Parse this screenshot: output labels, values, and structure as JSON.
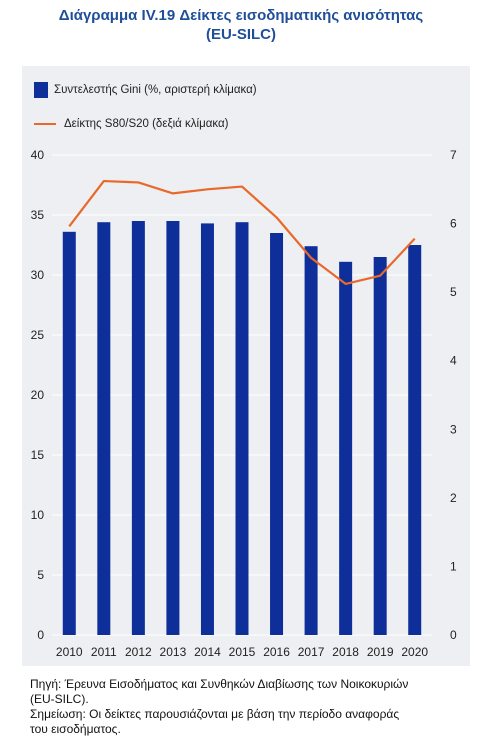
{
  "title_line1": "Διάγραμμα IV.19 Δείκτες εισοδηματικής ανισότητας",
  "title_line2": "(EU-SILC)",
  "chart_data": {
    "type": "bar",
    "categories": [
      "2010",
      "2011",
      "2012",
      "2013",
      "2014",
      "2015",
      "2016",
      "2017",
      "2018",
      "2019",
      "2020"
    ],
    "series": [
      {
        "name": "Συντελεστής Gini (%, αριστερή κλίμακα)",
        "type": "bar",
        "axis": "left",
        "color": "#0e2f9a",
        "values": [
          33.6,
          34.4,
          34.5,
          34.5,
          34.3,
          34.4,
          33.5,
          32.4,
          31.1,
          31.5,
          32.5
        ]
      },
      {
        "name": "Δείκτης S80/S20 (δεξιά κλίμακα)",
        "type": "line",
        "axis": "right",
        "color": "#e8692a",
        "values": [
          5.96,
          6.62,
          6.6,
          6.44,
          6.5,
          6.54,
          6.09,
          5.5,
          5.12,
          5.24,
          5.78
        ]
      }
    ],
    "y_left": {
      "ylim": [
        0,
        40
      ],
      "ticks": [
        0,
        5,
        10,
        15,
        20,
        25,
        30,
        35,
        40
      ]
    },
    "y_right": {
      "ylim": [
        0,
        7
      ],
      "ticks": [
        0,
        1,
        2,
        3,
        4,
        5,
        6,
        7
      ]
    },
    "legend_placement": "top-left",
    "grid": true
  },
  "notes": {
    "source_line1": "Πηγή: Έρευνα Εισοδήματος και Συνθηκών Διαβίωσης των Νοικοκυριών",
    "source_line2": "(EU-SILC).",
    "note_line1": "Σημείωση: Οι δείκτες παρουσιάζονται με βάση την περίοδο αναφοράς",
    "note_line2": "του εισοδήματος."
  }
}
